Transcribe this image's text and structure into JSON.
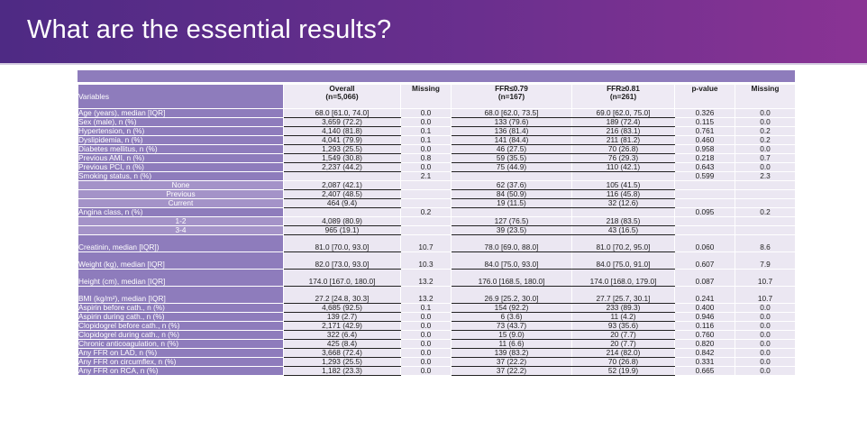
{
  "title": "What are the essential results?",
  "table": {
    "variables_label": "Variables",
    "columns": [
      {
        "line1": "Overall",
        "line2": "(n=5,066)"
      },
      {
        "line1": "Missing",
        "line2": ""
      },
      {
        "line1": "FFR≤0.79",
        "line2": "(n=167)"
      },
      {
        "line1": "FFR≥0.81",
        "line2": "(n=261)"
      },
      {
        "line1": "p-value",
        "line2": ""
      },
      {
        "line1": "Missing",
        "line2": ""
      }
    ],
    "rows": [
      {
        "label": "Age (years), median [IQR]",
        "overall": "68.0 [61.0, 74.0]",
        "missing1": "0.0",
        "ffr_low": "68.0 [62.0, 73.5]",
        "ffr_high": "69.0 [62.0, 75.0]",
        "p": "0.326",
        "missing2": "0.0"
      },
      {
        "label": "Sex (male), n (%)",
        "overall": "3,659 (72.2)",
        "missing1": "0.0",
        "ffr_low": "133 (79.6)",
        "ffr_high": "189 (72.4)",
        "p": "0.115",
        "missing2": "0.0"
      },
      {
        "label": "Hypertension, n (%)",
        "overall": "4,140 (81.8)",
        "missing1": "0.1",
        "ffr_low": "136 (81.4)",
        "ffr_high": "216 (83.1)",
        "p": "0.761",
        "missing2": "0.2"
      },
      {
        "label": "Dyslipidemia, n (%)",
        "overall": "4,041 (79.9)",
        "missing1": "0.1",
        "ffr_low": "141 (84.4)",
        "ffr_high": "211 (81.2)",
        "p": "0.460",
        "missing2": "0.2"
      },
      {
        "label": "Diabetes mellitus, n (%)",
        "overall": "1,293 (25.5)",
        "missing1": "0.0",
        "ffr_low": "46 (27.5)",
        "ffr_high": "70 (26.8)",
        "p": "0.958",
        "missing2": "0.0"
      },
      {
        "label": "Previous AMI, n (%)",
        "overall": "1,549 (30.8)",
        "missing1": "0.8",
        "ffr_low": "59 (35.5)",
        "ffr_high": "76 (29.3)",
        "p": "0.218",
        "missing2": "0.7"
      },
      {
        "label": "Previous PCI, n (%)",
        "overall": "2,237 (44.2)",
        "missing1": "0.0",
        "ffr_low": "75 (44.9)",
        "ffr_high": "110 (42.1)",
        "p": "0.643",
        "missing2": "0.0"
      },
      {
        "label": "Smoking status, n (%)",
        "overall": "",
        "missing1": "2.1",
        "ffr_low": "",
        "ffr_high": "",
        "p": "0.599",
        "missing2": "2.3"
      },
      {
        "label": "None",
        "sub": true,
        "overall": "2,087 (42.1)",
        "missing1": "",
        "ffr_low": "62 (37.6)",
        "ffr_high": "105 (41.5)",
        "p": "",
        "missing2": ""
      },
      {
        "label": "Previous",
        "sub": true,
        "overall": "2,407 (48.5)",
        "missing1": "",
        "ffr_low": "84 (50.9)",
        "ffr_high": "116 (45.8)",
        "p": "",
        "missing2": ""
      },
      {
        "label": "Current",
        "sub": true,
        "overall": "464 (9.4)",
        "missing1": "",
        "ffr_low": "19 (11.5)",
        "ffr_high": "32 (12.6)",
        "p": "",
        "missing2": ""
      },
      {
        "label": "Angina class, n (%)",
        "overall": "",
        "missing1": "0.2",
        "ffr_low": "",
        "ffr_high": "",
        "p": "0.095",
        "missing2": "0.2"
      },
      {
        "label": "1-2",
        "sub": true,
        "overall": "4,089 (80.9)",
        "missing1": "",
        "ffr_low": "127 (76.5)",
        "ffr_high": "218 (83.5)",
        "p": "",
        "missing2": ""
      },
      {
        "label": "3-4",
        "sub": true,
        "overall": "965 (19.1)",
        "missing1": "",
        "ffr_low": "39 (23.5)",
        "ffr_high": "43 (16.5)",
        "p": "",
        "missing2": ""
      },
      {
        "label": "Creatinin, median [IQR])",
        "tall": true,
        "overall": "81.0 [70.0, 93.0]",
        "missing1": "10.7",
        "ffr_low": "78.0 [69.0, 88.0]",
        "ffr_high": "81.0 [70.2, 95.0]",
        "p": "0.060",
        "missing2": "8.6"
      },
      {
        "label": "Weight (kg), median [IQR]",
        "tall": true,
        "overall": "82.0 [73.0, 93.0]",
        "missing1": "10.3",
        "ffr_low": "84.0 [75.0, 93.0]",
        "ffr_high": "84.0 [75.0, 91.0]",
        "p": "0.607",
        "missing2": "7.9"
      },
      {
        "label": "Height (cm), median [IQR]",
        "tall": true,
        "overall": "174.0 [167.0, 180.0]",
        "missing1": "13.2",
        "ffr_low": "176.0 [168.5, 180.0]",
        "ffr_high": "174.0 [168.0, 179.0]",
        "p": "0.087",
        "missing2": "10.7"
      },
      {
        "label": "BMI (kg/m²), median [IQR]",
        "tall": true,
        "overall": "27.2 [24.8, 30.3]",
        "missing1": "13.2",
        "ffr_low": "26.9 [25.2, 30.0]",
        "ffr_high": "27.7 [25.7, 30.1]",
        "p": "0.241",
        "missing2": "10.7"
      },
      {
        "label": "Aspirin before cath., n (%)",
        "overall": "4,685 (92.5)",
        "missing1": "0.1",
        "ffr_low": "154 (92.2)",
        "ffr_high": "233 (89.3)",
        "p": "0.400",
        "missing2": "0.0"
      },
      {
        "label": "Aspirin during cath., n (%)",
        "overall": "139 (2.7)",
        "missing1": "0.0",
        "ffr_low": "6 (3.6)",
        "ffr_high": "11 (4.2)",
        "p": "0.946",
        "missing2": "0.0"
      },
      {
        "label": "Clopidogrel before cath., n (%)",
        "overall": "2,171 (42.9)",
        "missing1": "0.0",
        "ffr_low": "73 (43.7)",
        "ffr_high": "93 (35.6)",
        "p": "0.116",
        "missing2": "0.0"
      },
      {
        "label": "Clopidogrel during cath., n (%)",
        "overall": "322 (6.4)",
        "missing1": "0.0",
        "ffr_low": "15 (9.0)",
        "ffr_high": "20 (7.7)",
        "p": "0.760",
        "missing2": "0.0"
      },
      {
        "label": "Chronic anticoagulation, n (%)",
        "overall": "425 (8.4)",
        "missing1": "0.0",
        "ffr_low": "11 (6.6)",
        "ffr_high": "20 (7.7)",
        "p": "0.820",
        "missing2": "0.0"
      },
      {
        "label": "Any FFR on LAD, n (%)",
        "overall": "3,668 (72.4)",
        "missing1": "0.0",
        "ffr_low": "139 (83.2)",
        "ffr_high": "214 (82.0)",
        "p": "0.842",
        "missing2": "0.0"
      },
      {
        "label": "Any FFR on circumflex, n (%)",
        "overall": "1,293 (25.5)",
        "missing1": "0.0",
        "ffr_low": "37 (22.2)",
        "ffr_high": "70 (26.8)",
        "p": "0.331",
        "missing2": "0.0"
      },
      {
        "label": "Any FFR on RCA, n (%)",
        "overall": "1,182 (23.3)",
        "missing1": "0.0",
        "ffr_low": "37 (22.2)",
        "ffr_high": "52 (19.9)",
        "p": "0.665",
        "missing2": "0.0"
      }
    ]
  }
}
